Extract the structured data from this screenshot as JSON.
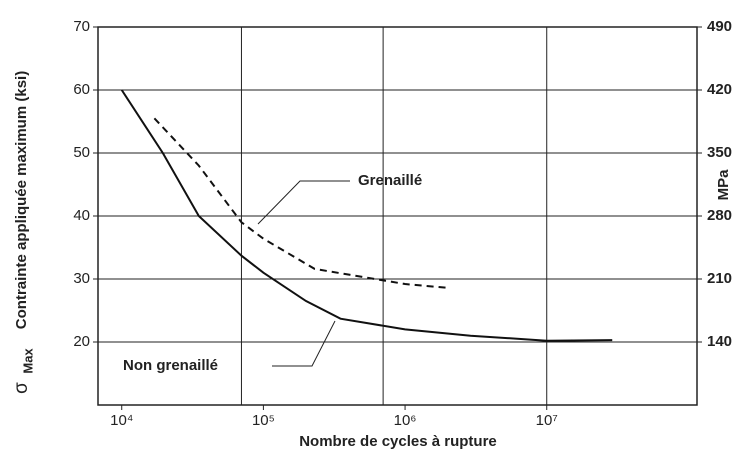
{
  "chart_data": {
    "type": "line",
    "x_label": "Nombre de cycles à rupture",
    "y_label": "Contrainte appliquée maximum (ksi)",
    "y_symbol": "σ",
    "y_symbol_sub": "Max",
    "y2_label": "MPa",
    "xscale": "log",
    "xlim": [
      6800,
      115000000
    ],
    "xticks": [
      {
        "value": 10000,
        "label": "10⁴"
      },
      {
        "value": 100000,
        "label": "10⁵"
      },
      {
        "value": 1000000,
        "label": "10⁶"
      },
      {
        "value": 10000000,
        "label": "10⁷"
      }
    ],
    "xgrid": [
      70000,
      700000,
      10000000
    ],
    "ylim": [
      10,
      70
    ],
    "yticks": [
      20,
      30,
      40,
      50,
      60,
      70
    ],
    "y2lim": [
      70,
      490
    ],
    "y2ticks": [
      140,
      210,
      280,
      350,
      420,
      490
    ],
    "grid": true,
    "series": [
      {
        "name": "Non grenaillé",
        "color": "#111111",
        "dash": false,
        "x": [
          10000,
          19500,
          35000,
          70000,
          100000,
          200000,
          350000,
          1000000,
          2900000,
          10000000,
          29000000
        ],
        "values": [
          60,
          50,
          40,
          33.7,
          31,
          26.5,
          23.7,
          22,
          21,
          20.2,
          20.3
        ]
      },
      {
        "name": "Grenaillé",
        "color": "#111111",
        "dash": true,
        "x": [
          17000,
          35000,
          70000,
          100000,
          230000,
          1000000,
          2000000
        ],
        "values": [
          55.5,
          48,
          39,
          36.4,
          31.6,
          29.2,
          28.6
        ]
      }
    ]
  }
}
